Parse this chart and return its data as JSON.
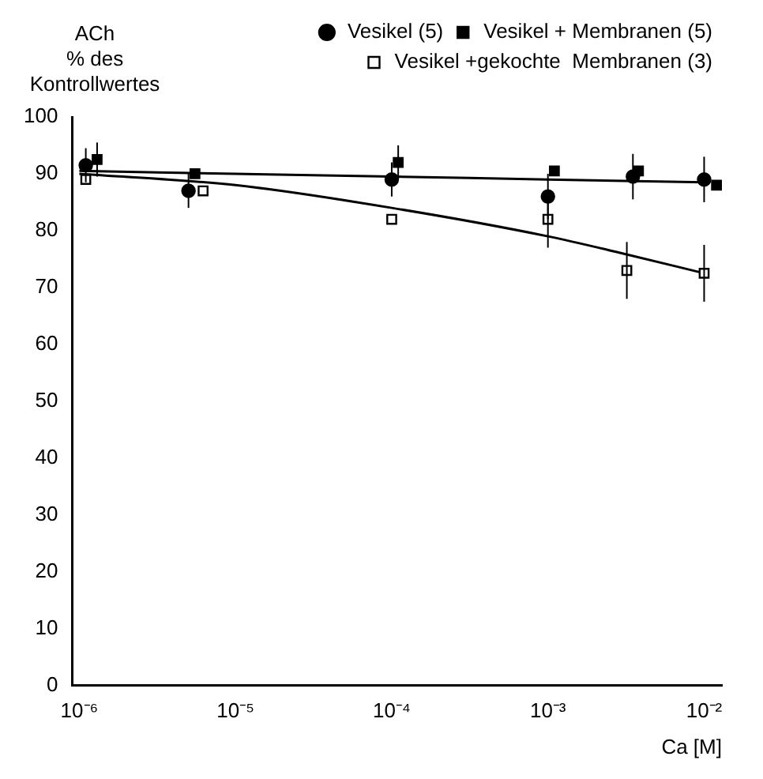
{
  "chart_data": {
    "type": "scatter",
    "ylabel": "ACh\n% des\nKontrollwertes",
    "xlabel": "Ca [M]",
    "log": "x",
    "xlim": [
      9e-07,
      0.013
    ],
    "xticks": [
      {
        "value": 1e-06,
        "label": "10⁻⁶"
      },
      {
        "value": 1e-05,
        "label": "10⁻⁵"
      },
      {
        "value": 0.0001,
        "label": "10⁻⁴"
      },
      {
        "value": 0.001,
        "label": "10⁻³"
      },
      {
        "value": 0.01,
        "label": "10⁻²"
      }
    ],
    "ylim": [
      0,
      100
    ],
    "yticks": [
      0,
      10,
      20,
      30,
      40,
      50,
      60,
      70,
      80,
      90,
      100
    ],
    "grid": false,
    "legend": "top",
    "series": [
      {
        "name": "Vesikel (5)",
        "color": "#000000",
        "marker": "circle",
        "x": [
          1.1e-06,
          5e-06,
          0.0001,
          0.001,
          0.0035,
          0.01
        ],
        "values": [
          91.5,
          87,
          89,
          86,
          89.5,
          89
        ],
        "errors": [
          3,
          3,
          3,
          4,
          4,
          4
        ]
      },
      {
        "name": "Vesikel + Membranen (5)",
        "color": "#000000",
        "marker": "square",
        "x": [
          1.3e-06,
          5.5e-06,
          0.00011,
          0.0011,
          0.0038,
          0.012
        ],
        "values": [
          92.5,
          90,
          92,
          90.5,
          90.5,
          88
        ],
        "errors": [
          3,
          null,
          3,
          null,
          null,
          null
        ]
      },
      {
        "name": "Vesikel +gekochte  Membranen (3)",
        "color": "#ffffff",
        "marker": "square",
        "x": [
          1.1e-06,
          6.2e-06,
          0.0001,
          0.001,
          0.0032,
          0.01
        ],
        "values": [
          89,
          87,
          82,
          82,
          73,
          72.5
        ],
        "errors": [
          null,
          null,
          null,
          5,
          5,
          5
        ]
      },
      {
        "type": "line",
        "color": "#000000",
        "x": [
          1e-06,
          1e-05,
          0.0001,
          0.001,
          0.01
        ],
        "values": [
          90.5,
          90,
          89.5,
          89,
          88.5
        ]
      },
      {
        "type": "line",
        "color": "#000000",
        "x": [
          1e-06,
          1e-05,
          0.0001,
          0.001,
          0.003,
          0.01
        ],
        "values": [
          90,
          88,
          84,
          79,
          76,
          72.5
        ]
      }
    ]
  }
}
